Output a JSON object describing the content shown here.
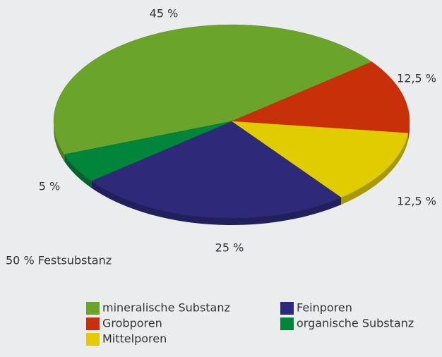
{
  "chart_data": {
    "type": "pie",
    "categories": [
      "mineralische Substanz",
      "Grobporen",
      "Mittelporen",
      "Feinporen",
      "organische Substanz"
    ],
    "values": [
      45,
      12.5,
      12.5,
      25,
      5
    ],
    "value_labels": [
      "45 %",
      "12,5 %",
      "12,5 %",
      "25 %",
      "5 %"
    ],
    "colors": [
      "#6aa42a",
      "#c8300a",
      "#e0cc00",
      "#2d2a7a",
      "#00853a"
    ],
    "annotation": "50 % Festsubstanz",
    "legend": "bottom"
  }
}
